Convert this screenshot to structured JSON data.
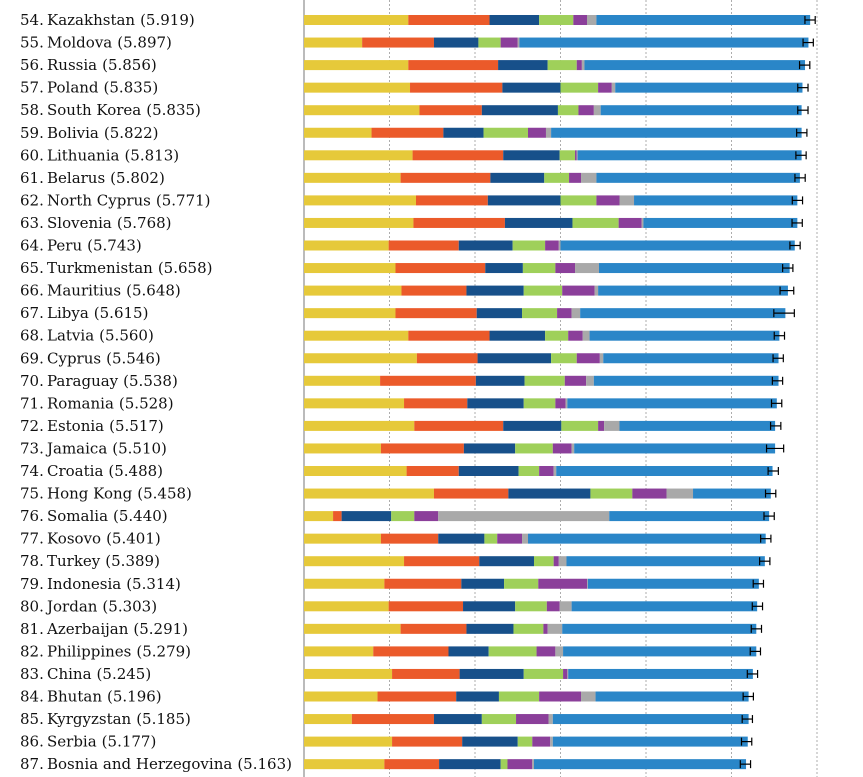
{
  "chart_data": {
    "type": "bar",
    "orientation": "horizontal",
    "stacked": true,
    "title": "",
    "xlabel": "",
    "ylabel": "",
    "xlim": [
      0,
      6
    ],
    "gridlines": [
      1,
      2,
      3,
      4,
      5,
      6
    ],
    "error_bars": true,
    "series_colors": [
      "#e6c93a",
      "#eb5a2a",
      "#17508a",
      "#9fd05a",
      "#8b3f9a",
      "#a9a9a9",
      "#2a86c8"
    ],
    "rows": [
      {
        "rank": "54.",
        "country": "Kazakhstan",
        "score": "(5.919)",
        "value": 5.919,
        "err": 0.06,
        "s": [
          1.22,
          0.95,
          0.58,
          0.4,
          0.16,
          0.11,
          2.5
        ]
      },
      {
        "rank": "55.",
        "country": "Moldova",
        "score": "(5.897)",
        "value": 5.897,
        "err": 0.06,
        "s": [
          0.68,
          0.84,
          0.52,
          0.26,
          0.2,
          0.02,
          3.38
        ]
      },
      {
        "rank": "56.",
        "country": "Russia",
        "score": "(5.856)",
        "value": 5.856,
        "err": 0.06,
        "s": [
          1.22,
          1.05,
          0.58,
          0.34,
          0.06,
          0.03,
          2.58
        ]
      },
      {
        "rank": "57.",
        "country": "Poland",
        "score": "(5.835)",
        "value": 5.835,
        "err": 0.06,
        "s": [
          1.24,
          1.08,
          0.68,
          0.44,
          0.16,
          0.04,
          2.19
        ]
      },
      {
        "rank": "58.",
        "country": "South Korea",
        "score": "(5.835)",
        "value": 5.835,
        "err": 0.06,
        "s": [
          1.35,
          0.73,
          0.89,
          0.24,
          0.18,
          0.08,
          2.35
        ]
      },
      {
        "rank": "59.",
        "country": "Bolivia",
        "score": "(5.822)",
        "value": 5.822,
        "err": 0.06,
        "s": [
          0.79,
          0.84,
          0.47,
          0.52,
          0.21,
          0.06,
          2.93
        ]
      },
      {
        "rank": "60.",
        "country": "Lithuania",
        "score": "(5.813)",
        "value": 5.813,
        "err": 0.06,
        "s": [
          1.27,
          1.06,
          0.66,
          0.18,
          0.02,
          0.01,
          2.62
        ]
      },
      {
        "rank": "61.",
        "country": "Belarus",
        "score": "(5.802)",
        "value": 5.802,
        "err": 0.06,
        "s": [
          1.13,
          1.05,
          0.63,
          0.29,
          0.14,
          0.18,
          2.38
        ]
      },
      {
        "rank": "62.",
        "country": "North Cyprus",
        "score": "(5.771)",
        "value": 5.771,
        "err": 0.06,
        "s": [
          1.31,
          0.84,
          0.85,
          0.42,
          0.27,
          0.17,
          1.91
        ]
      },
      {
        "rank": "63.",
        "country": "Slovenia",
        "score": "(5.768)",
        "value": 5.768,
        "err": 0.06,
        "s": [
          1.28,
          1.07,
          0.79,
          0.54,
          0.27,
          0.02,
          1.8
        ]
      },
      {
        "rank": "64.",
        "country": "Peru",
        "score": "(5.743)",
        "value": 5.743,
        "err": 0.06,
        "s": [
          0.99,
          0.82,
          0.63,
          0.38,
          0.16,
          0.02,
          2.74
        ]
      },
      {
        "rank": "65.",
        "country": "Turkmenistan",
        "score": "(5.658)",
        "value": 5.658,
        "err": 0.06,
        "s": [
          1.07,
          1.05,
          0.44,
          0.38,
          0.23,
          0.28,
          2.23
        ]
      },
      {
        "rank": "66.",
        "country": "Mauritius",
        "score": "(5.648)",
        "value": 5.648,
        "err": 0.08,
        "s": [
          1.14,
          0.76,
          0.67,
          0.45,
          0.38,
          0.04,
          2.22
        ]
      },
      {
        "rank": "67.",
        "country": "Libya",
        "score": "(5.615)",
        "value": 5.615,
        "err": 0.12,
        "s": [
          1.07,
          0.95,
          0.53,
          0.41,
          0.17,
          0.1,
          2.4
        ]
      },
      {
        "rank": "68.",
        "country": "Latvia",
        "score": "(5.560)",
        "value": 5.56,
        "err": 0.06,
        "s": [
          1.22,
          0.95,
          0.65,
          0.27,
          0.17,
          0.08,
          2.22
        ]
      },
      {
        "rank": "69.",
        "country": "Cyprus",
        "score": "(5.546)",
        "value": 5.546,
        "err": 0.06,
        "s": [
          1.32,
          0.71,
          0.86,
          0.3,
          0.27,
          0.04,
          2.05
        ]
      },
      {
        "rank": "70.",
        "country": "Paraguay",
        "score": "(5.538)",
        "value": 5.538,
        "err": 0.06,
        "s": [
          0.89,
          1.12,
          0.57,
          0.47,
          0.25,
          0.09,
          2.16
        ]
      },
      {
        "rank": "71.",
        "country": "Romania",
        "score": "(5.528)",
        "value": 5.528,
        "err": 0.06,
        "s": [
          1.17,
          0.74,
          0.66,
          0.37,
          0.12,
          0.02,
          2.45
        ]
      },
      {
        "rank": "72.",
        "country": "Estonia",
        "score": "(5.517)",
        "value": 5.517,
        "err": 0.06,
        "s": [
          1.29,
          1.04,
          0.68,
          0.43,
          0.07,
          0.18,
          1.82
        ]
      },
      {
        "rank": "73.",
        "country": "Jamaica",
        "score": "(5.510)",
        "value": 5.51,
        "err": 0.1,
        "s": [
          0.9,
          0.97,
          0.6,
          0.44,
          0.22,
          0.03,
          2.35
        ]
      },
      {
        "rank": "74.",
        "country": "Croatia",
        "score": "(5.488)",
        "value": 5.488,
        "err": 0.06,
        "s": [
          1.2,
          0.61,
          0.7,
          0.24,
          0.17,
          0.03,
          2.53
        ]
      },
      {
        "rank": "75.",
        "country": "Hong Kong",
        "score": "(5.458)",
        "value": 5.458,
        "err": 0.06,
        "s": [
          1.52,
          0.87,
          0.96,
          0.49,
          0.4,
          0.31,
          0.91
        ]
      },
      {
        "rank": "76.",
        "country": "Somalia",
        "score": "(5.440)",
        "value": 5.44,
        "err": 0.06,
        "s": [
          0.34,
          0.1,
          0.58,
          0.27,
          0.28,
          2.0,
          1.87
        ]
      },
      {
        "rank": "77.",
        "country": "Kosovo",
        "score": "(5.401)",
        "value": 5.401,
        "err": 0.06,
        "s": [
          0.9,
          0.67,
          0.54,
          0.15,
          0.29,
          0.07,
          2.78
        ]
      },
      {
        "rank": "78.",
        "country": "Turkey",
        "score": "(5.389)",
        "value": 5.389,
        "err": 0.06,
        "s": [
          1.17,
          0.88,
          0.64,
          0.23,
          0.06,
          0.09,
          2.32
        ]
      },
      {
        "rank": "79.",
        "country": "Indonesia",
        "score": "(5.314)",
        "value": 5.314,
        "err": 0.06,
        "s": [
          0.94,
          0.9,
          0.5,
          0.4,
          0.57,
          0.01,
          2.0
        ]
      },
      {
        "rank": "80.",
        "country": "Jordan",
        "score": "(5.303)",
        "value": 5.303,
        "err": 0.06,
        "s": [
          0.99,
          0.87,
          0.61,
          0.37,
          0.15,
          0.14,
          2.17
        ]
      },
      {
        "rank": "81.",
        "country": "Azerbaijan",
        "score": "(5.291)",
        "value": 5.291,
        "err": 0.06,
        "s": [
          1.13,
          0.77,
          0.55,
          0.35,
          0.05,
          0.17,
          2.27
        ]
      },
      {
        "rank": "82.",
        "country": "Philippines",
        "score": "(5.279)",
        "value": 5.279,
        "err": 0.06,
        "s": [
          0.81,
          0.88,
          0.47,
          0.56,
          0.22,
          0.09,
          2.26
        ]
      },
      {
        "rank": "83.",
        "country": "China",
        "score": "(5.245)",
        "value": 5.245,
        "err": 0.06,
        "s": [
          1.03,
          0.79,
          0.75,
          0.46,
          0.05,
          0.01,
          2.16
        ]
      },
      {
        "rank": "84.",
        "country": "Bhutan",
        "score": "(5.196)",
        "value": 5.196,
        "err": 0.06,
        "s": [
          0.86,
          0.92,
          0.5,
          0.47,
          0.49,
          0.17,
          1.79
        ]
      },
      {
        "rank": "85.",
        "country": "Kyrgyzstan",
        "score": "(5.185)",
        "value": 5.185,
        "err": 0.06,
        "s": [
          0.56,
          0.96,
          0.56,
          0.4,
          0.38,
          0.05,
          2.29
        ]
      },
      {
        "rank": "86.",
        "country": "Serbia",
        "score": "(5.177)",
        "value": 5.177,
        "err": 0.06,
        "s": [
          1.03,
          0.82,
          0.65,
          0.17,
          0.21,
          0.03,
          2.28
        ]
      },
      {
        "rank": "87.",
        "country": "Bosnia and Herzegovina",
        "score": "(5.163)",
        "value": 5.163,
        "err": 0.06,
        "s": [
          0.94,
          0.64,
          0.72,
          0.08,
          0.29,
          0.02,
          2.48
        ]
      }
    ]
  }
}
